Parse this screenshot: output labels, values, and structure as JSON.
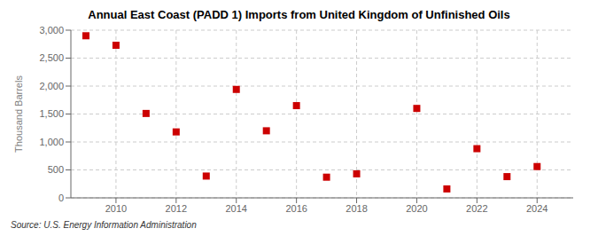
{
  "chart_data": {
    "type": "scatter",
    "title": "Annual East Coast (PADD 1) Imports from United Kingdom of Unfinished Oils",
    "ylabel": "Thousand Barrels",
    "annotations": [
      "Source: U.S. Energy Information Administration"
    ],
    "x": [
      2009,
      2010,
      2011,
      2012,
      2013,
      2014,
      2015,
      2016,
      2017,
      2018,
      2020,
      2021,
      2022,
      2023,
      2024
    ],
    "values": [
      2900,
      2730,
      1510,
      1180,
      390,
      1940,
      1200,
      1650,
      370,
      430,
      1600,
      160,
      880,
      380,
      560
    ],
    "color": "#cc0000",
    "marker": "square",
    "xlim": [
      2008.5,
      2025.2
    ],
    "ylim": [
      0,
      3000
    ],
    "xticks": [
      2010,
      2012,
      2014,
      2016,
      2018,
      2020,
      2022,
      2024
    ],
    "yticks": [
      0,
      500,
      {
        "value": 1000,
        "label": "1,000"
      },
      {
        "value": 1500,
        "label": "1,500"
      },
      {
        "value": 2000,
        "label": "2,000"
      },
      {
        "value": 2500,
        "label": "2,500"
      },
      {
        "value": 3000,
        "label": "3,000"
      }
    ],
    "grid": true
  }
}
